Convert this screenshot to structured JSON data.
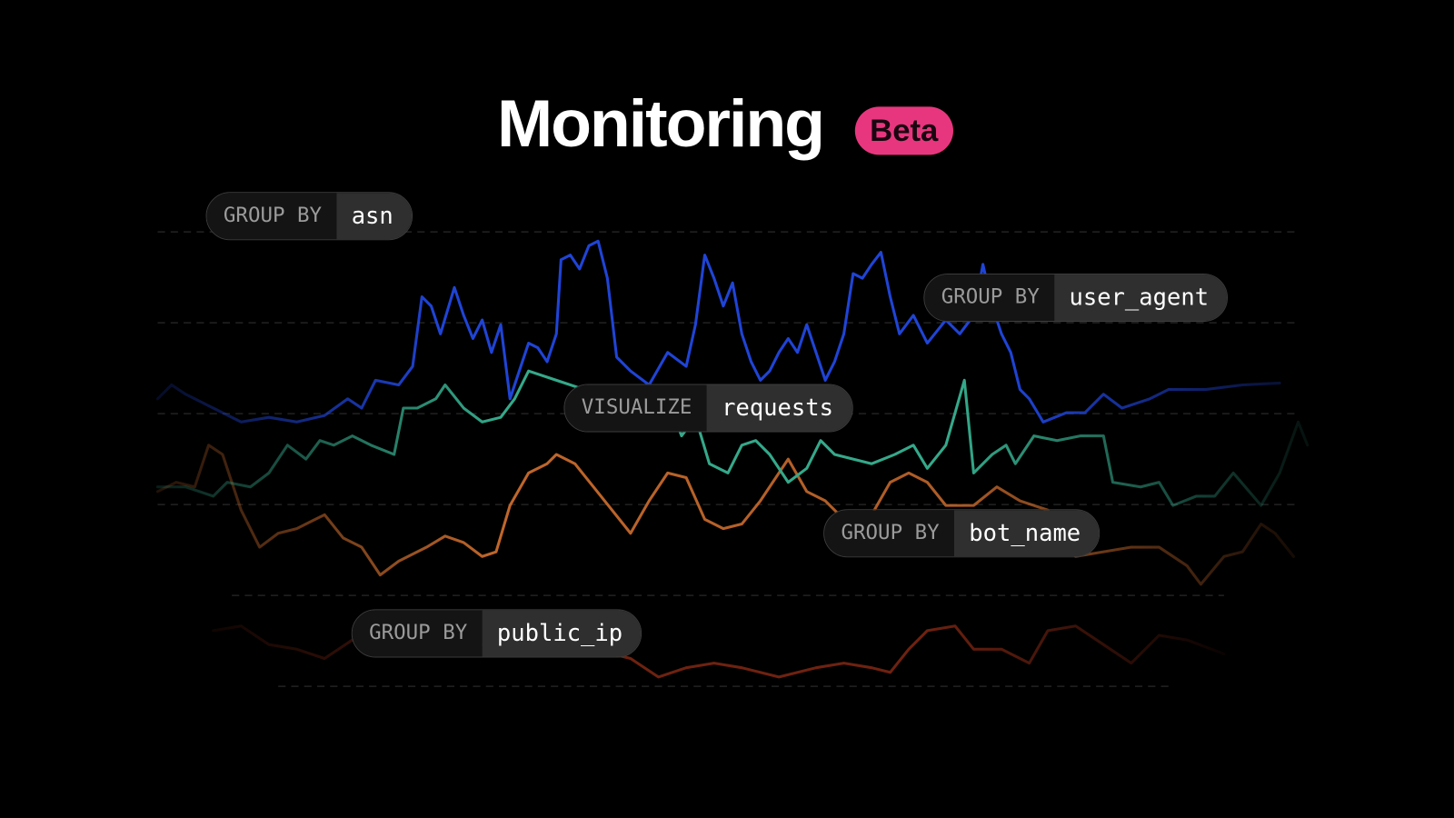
{
  "header": {
    "title": "Monitoring",
    "badge": "Beta"
  },
  "pills": [
    {
      "keyword": "GROUP BY",
      "value": "asn"
    },
    {
      "keyword": "GROUP BY",
      "value": "user_agent"
    },
    {
      "keyword": "VISUALIZE",
      "value": "requests"
    },
    {
      "keyword": "GROUP BY",
      "value": "bot_name"
    },
    {
      "keyword": "GROUP BY",
      "value": "public_ip"
    }
  ]
}
